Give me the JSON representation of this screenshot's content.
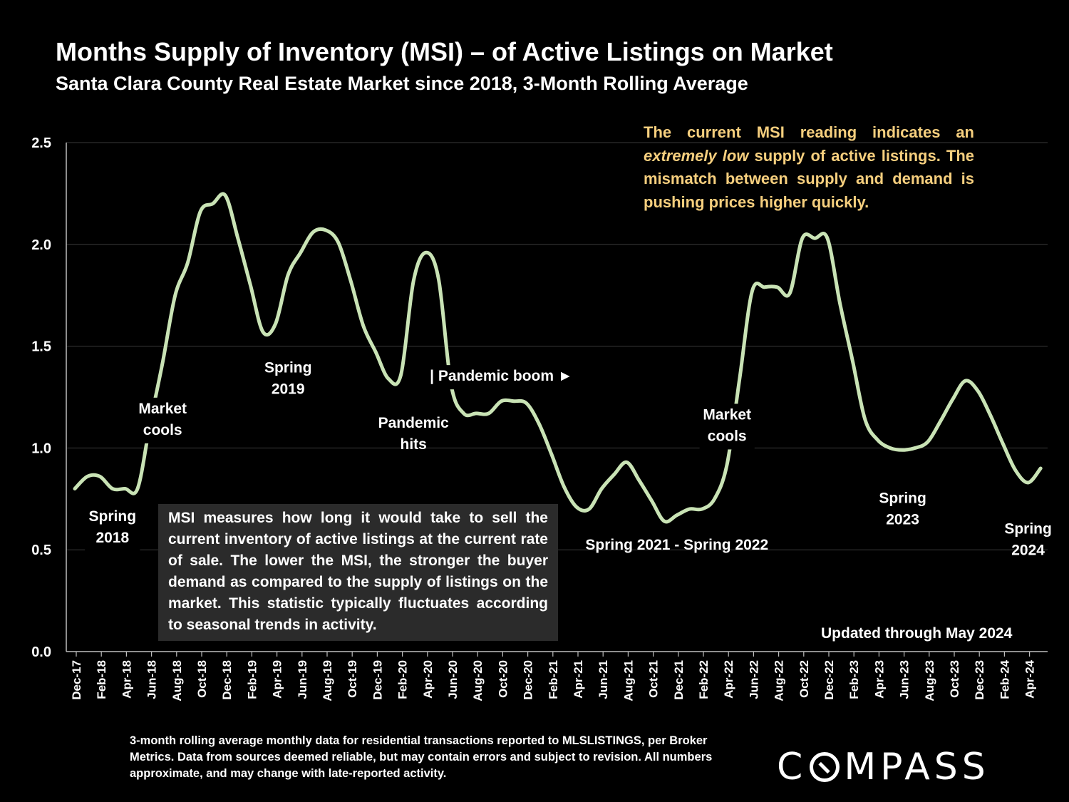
{
  "title": "Months Supply of Inventory (MSI) – of Active Listings on Market",
  "subtitle": "Santa Clara County Real Estate Market since 2018, 3-Month Rolling Average",
  "callout": {
    "part1": "The current MSI reading indicates an ",
    "emph": "extremely low",
    "part2": " supply of active listings. The mismatch between supply and demand is pushing prices higher quickly."
  },
  "info_box": "MSI measures how long it would take to sell the current inventory of active listings at the current rate of sale. The lower the MSI, the stronger the buyer demand as compared to the supply of listings on the market. This statistic typically fluctuates according to seasonal trends in activity.",
  "updated": "Updated through May 2024",
  "footnote": "3-month rolling average monthly data for residential transactions reported to MLSLISTINGS, per Broker Metrics. Data from sources deemed reliable, but may contain errors and subject to revision. All numbers approximate, and may change with late-reported activity.",
  "logo": {
    "first": "C",
    "rest": "MPASS"
  },
  "chart_data": {
    "type": "line",
    "title": "Months Supply of Inventory (MSI) – of Active Listings on Market",
    "xlabel": "",
    "ylabel": "",
    "ylim": [
      0,
      2.5
    ],
    "yticks": [
      "0.0",
      "0.5",
      "1.0",
      "1.5",
      "2.0",
      "2.5"
    ],
    "grid": true,
    "line_color": "#c9e3b5",
    "categories": [
      "Dec-17",
      "Jan-18",
      "Feb-18",
      "Mar-18",
      "Apr-18",
      "May-18",
      "Jun-18",
      "Jul-18",
      "Aug-18",
      "Sep-18",
      "Oct-18",
      "Nov-18",
      "Dec-18",
      "Jan-19",
      "Feb-19",
      "Mar-19",
      "Apr-19",
      "May-19",
      "Jun-19",
      "Jul-19",
      "Aug-19",
      "Sep-19",
      "Oct-19",
      "Nov-19",
      "Dec-19",
      "Jan-20",
      "Feb-20",
      "Mar-20",
      "Apr-20",
      "May-20",
      "Jun-20",
      "Jul-20",
      "Aug-20",
      "Sep-20",
      "Oct-20",
      "Nov-20",
      "Dec-20",
      "Jan-21",
      "Feb-21",
      "Mar-21",
      "Apr-21",
      "May-21",
      "Jun-21",
      "Jul-21",
      "Aug-21",
      "Sep-21",
      "Oct-21",
      "Nov-21",
      "Dec-21",
      "Jan-22",
      "Feb-22",
      "Mar-22",
      "Apr-22",
      "May-22",
      "Jun-22",
      "Jul-22",
      "Aug-22",
      "Sep-22",
      "Oct-22",
      "Nov-22",
      "Dec-22",
      "Jan-23",
      "Feb-23",
      "Mar-23",
      "Apr-23",
      "May-23",
      "Jun-23",
      "Jul-23",
      "Aug-23",
      "Sep-23",
      "Oct-23",
      "Nov-23",
      "Dec-23",
      "Jan-24",
      "Feb-24",
      "Mar-24",
      "Apr-24",
      "May-24"
    ],
    "tick_labels": [
      "Dec-17",
      "Feb-18",
      "Apr-18",
      "Jun-18",
      "Aug-18",
      "Oct-18",
      "Dec-18",
      "Feb-19",
      "Apr-19",
      "Jun-19",
      "Aug-19",
      "Oct-19",
      "Dec-19",
      "Feb-20",
      "Apr-20",
      "Jun-20",
      "Aug-20",
      "Oct-20",
      "Dec-20",
      "Feb-21",
      "Apr-21",
      "Jun-21",
      "Aug-21",
      "Oct-21",
      "Dec-21",
      "Feb-22",
      "Apr-22",
      "Jun-22",
      "Aug-22",
      "Oct-22",
      "Dec-22",
      "Feb-23",
      "Apr-23",
      "Jun-23",
      "Aug-23",
      "Oct-23",
      "Dec-23",
      "Feb-24",
      "Apr-24"
    ],
    "series": [
      {
        "name": "MSI",
        "values": [
          0.8,
          0.86,
          0.86,
          0.8,
          0.8,
          0.8,
          1.12,
          1.42,
          1.75,
          1.91,
          2.16,
          2.2,
          2.24,
          2.03,
          1.8,
          1.57,
          1.61,
          1.85,
          1.96,
          2.06,
          2.07,
          2.01,
          1.82,
          1.6,
          1.47,
          1.34,
          1.36,
          1.82,
          1.96,
          1.83,
          1.31,
          1.17,
          1.17,
          1.17,
          1.23,
          1.23,
          1.22,
          1.12,
          0.97,
          0.81,
          0.71,
          0.7,
          0.8,
          0.87,
          0.93,
          0.84,
          0.74,
          0.64,
          0.67,
          0.7,
          0.7,
          0.75,
          0.92,
          1.34,
          1.77,
          1.79,
          1.79,
          1.76,
          2.03,
          2.03,
          2.03,
          1.71,
          1.43,
          1.14,
          1.04,
          1.0,
          0.99,
          1.0,
          1.03,
          1.13,
          1.24,
          1.33,
          1.28,
          1.16,
          1.02,
          0.89,
          0.83,
          0.9
        ]
      }
    ],
    "annotations": [
      {
        "lines": [
          "Spring",
          "2018"
        ],
        "x": "Mar-18",
        "y": 0.64,
        "gap": true
      },
      {
        "lines": [
          "Market",
          "cools"
        ],
        "x": "Jul-18",
        "y": 1.17,
        "gap": true
      },
      {
        "lines": [
          "Spring",
          "2019"
        ],
        "x": "May-19",
        "y": 1.37,
        "gap": false
      },
      {
        "lines": [
          "Pandemic",
          "hits"
        ],
        "x": "Mar-20",
        "y": 1.1,
        "gap": false
      },
      {
        "lines": [
          "| Pandemic boom ►"
        ],
        "x": "Oct-20",
        "y": 1.33,
        "gap": true
      },
      {
        "lines": [
          "Spring 2021 - Spring 2022"
        ],
        "x": "Dec-21",
        "y": 0.5,
        "gap": false
      },
      {
        "lines": [
          "Market",
          "cools"
        ],
        "x": "Apr-22",
        "y": 1.14,
        "gap": true
      },
      {
        "lines": [
          "Spring",
          "2023"
        ],
        "x": "Jun-23",
        "y": 0.73,
        "gap": false
      },
      {
        "lines": [
          "Spring",
          "2024"
        ],
        "x": "Apr-24",
        "y": 0.58,
        "gap": false
      }
    ]
  }
}
